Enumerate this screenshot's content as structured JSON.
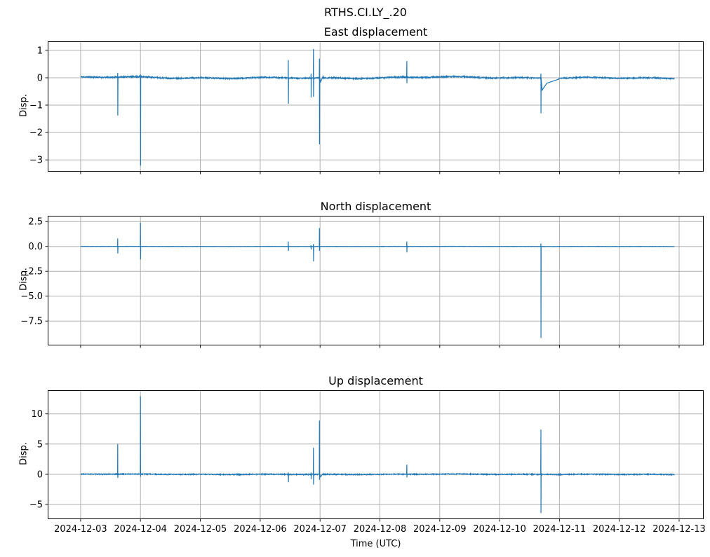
{
  "figure": {
    "suptitle": "RTHS.CI.LY_.20",
    "xlabel": "Time (UTC)",
    "line_color": "#1f77b4",
    "grid_color": "#b0b0b0",
    "spine_color": "#000000",
    "background": "#ffffff",
    "xticks": {
      "values": [
        0,
        1,
        2,
        3,
        4,
        5,
        6,
        7,
        8,
        9,
        10
      ],
      "labels": [
        "2024-12-03",
        "2024-12-04",
        "2024-12-05",
        "2024-12-06",
        "2024-12-07",
        "2024-12-08",
        "2024-12-09",
        "2024-12-10",
        "2024-12-11",
        "2024-12-12",
        "2024-12-13"
      ]
    },
    "xlim_days": [
      -0.55,
      10.41
    ],
    "x_day_zero": "2024-12-03"
  },
  "chart_data": [
    {
      "type": "line",
      "title": "East displacement",
      "ylabel": "Disp.",
      "grid": true,
      "legend": "none",
      "ylim": [
        -3.43,
        1.33
      ],
      "yticks": {
        "values": [
          1,
          0,
          -1,
          -2,
          -3
        ],
        "labels": [
          "1",
          "0",
          "−1",
          "−2",
          "−3"
        ]
      },
      "data_days": [
        0,
        9.92
      ],
      "baseline": 0,
      "noise": {
        "jitter": 0.022,
        "wander": 0.035
      },
      "seed": 11,
      "spikes": [
        {
          "t": 0.62,
          "max": 0.18,
          "min": -1.38
        },
        {
          "t": 1.0,
          "max": 0.12,
          "min": -3.21
        },
        {
          "t": 3.47,
          "max": 0.65,
          "min": -0.95
        },
        {
          "t": 3.85,
          "max": 0.15,
          "min": -0.72
        },
        {
          "t": 3.89,
          "max": 1.05,
          "min": -0.7
        },
        {
          "t": 3.99,
          "max": 0.7,
          "min": -2.43,
          "after": [
            [
              0.02,
              -0.15
            ],
            [
              0.06,
              0.05
            ]
          ]
        },
        {
          "t": 5.45,
          "max": 0.61,
          "min": -0.2
        },
        {
          "t": 7.69,
          "max": 0.15,
          "min": -1.3,
          "after": [
            [
              0.02,
              -0.45
            ],
            [
              0.1,
              -0.2
            ],
            [
              0.3,
              -0.05
            ]
          ]
        }
      ]
    },
    {
      "type": "line",
      "title": "North displacement",
      "ylabel": "Disp.",
      "grid": true,
      "legend": "none",
      "ylim": [
        -9.95,
        3.08
      ],
      "yticks": {
        "values": [
          2.5,
          0.0,
          -2.5,
          -5.0,
          -7.5
        ],
        "labels": [
          "2.5",
          "0.0",
          "−2.5",
          "−5.0",
          "−7.5"
        ]
      },
      "data_days": [
        0,
        9.92
      ],
      "baseline": 0,
      "noise": {
        "jitter": 0.012,
        "wander": 0.008
      },
      "seed": 22,
      "spikes": [
        {
          "t": 0.62,
          "max": 0.8,
          "min": -0.7
        },
        {
          "t": 1.0,
          "max": 2.4,
          "min": -1.3
        },
        {
          "t": 3.47,
          "max": 0.5,
          "min": -0.45
        },
        {
          "t": 3.85,
          "max": 0.1,
          "min": -0.3
        },
        {
          "t": 3.89,
          "max": 0.25,
          "min": -1.5
        },
        {
          "t": 3.99,
          "max": 1.85,
          "min": -0.45
        },
        {
          "t": 5.45,
          "max": 0.5,
          "min": -0.6
        },
        {
          "t": 7.69,
          "max": 0.3,
          "min": -9.2
        }
      ]
    },
    {
      "type": "line",
      "title": "Up displacement",
      "ylabel": "Disp.",
      "grid": true,
      "legend": "none",
      "ylim": [
        -7.42,
        13.9
      ],
      "yticks": {
        "values": [
          10,
          5,
          0,
          -5
        ],
        "labels": [
          "10",
          "5",
          "0",
          "−5"
        ]
      },
      "data_days": [
        0,
        9.92
      ],
      "baseline": 0,
      "noise": {
        "jitter": 0.07,
        "wander": 0.04
      },
      "seed": 33,
      "spikes": [
        {
          "t": 0.62,
          "max": 5.0,
          "min": -0.6
        },
        {
          "t": 1.0,
          "max": 12.9,
          "min": -0.4
        },
        {
          "t": 3.47,
          "max": 0.3,
          "min": -1.3
        },
        {
          "t": 3.85,
          "max": 0.3,
          "min": -0.8
        },
        {
          "t": 3.89,
          "max": 4.4,
          "min": -1.7
        },
        {
          "t": 3.99,
          "max": 8.9,
          "min": -0.9,
          "after": [
            [
              0.02,
              -0.4
            ],
            [
              0.06,
              0.1
            ]
          ]
        },
        {
          "t": 5.45,
          "max": 1.6,
          "min": -0.5
        },
        {
          "t": 7.69,
          "max": 7.4,
          "min": -6.4
        }
      ]
    }
  ]
}
